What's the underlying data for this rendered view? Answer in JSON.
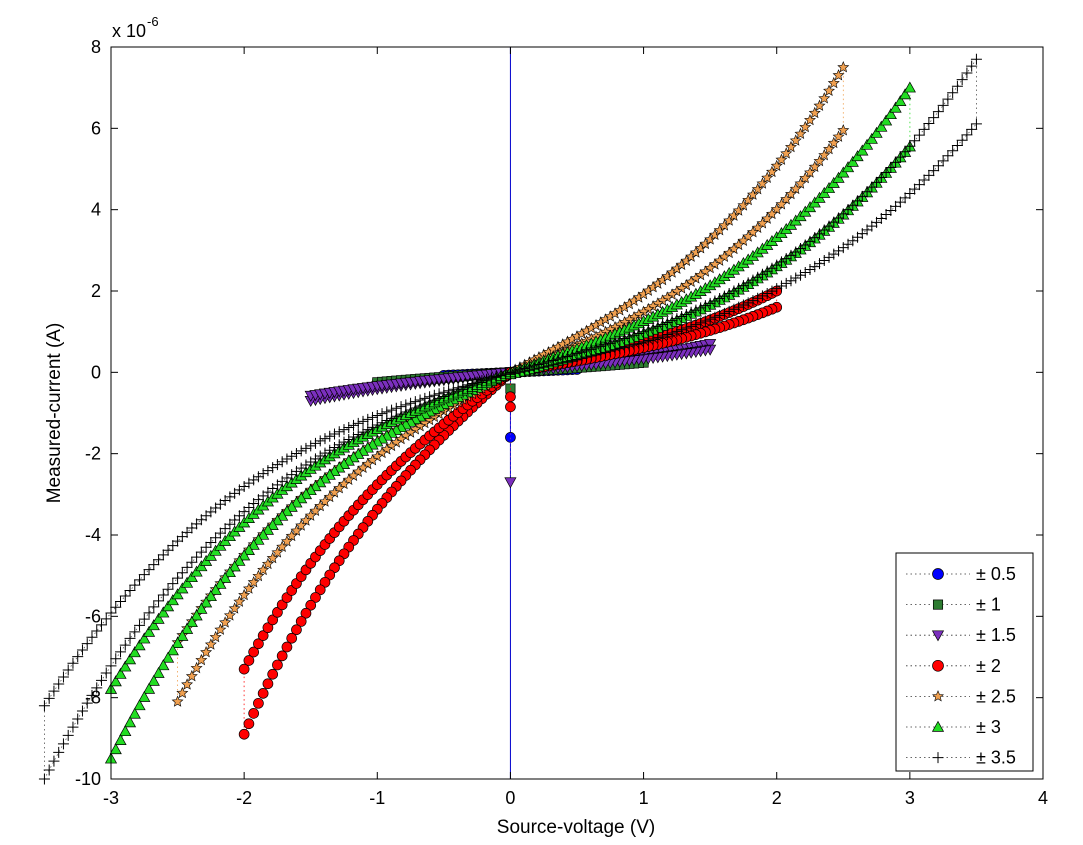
{
  "chart_data": {
    "type": "scatter",
    "xlabel": "Source-voltage (V)",
    "ylabel": "Measured-current (A)",
    "exponent_label": "x 10",
    "exponent_power": "-6",
    "xlim": [
      -3,
      4
    ],
    "ylim": [
      -10,
      8
    ],
    "xticks": [
      "-3",
      "-2",
      "-1",
      "0",
      "1",
      "2",
      "3",
      "4"
    ],
    "yticks": [
      "-10",
      "-8",
      "-6",
      "-4",
      "-2",
      "0",
      "2",
      "4",
      "6",
      "8"
    ],
    "legend_position": "bottom-right",
    "series": [
      {
        "name": "± 0.5",
        "marker": "circle",
        "color": "#0000ff",
        "sweep": 0.5,
        "i_pos": 0.09,
        "i_neg": -0.09,
        "extra_x": [
          0
        ],
        "extra_y": [
          -1.6
        ]
      },
      {
        "name": "± 1",
        "marker": "square",
        "color": "#2e7d32",
        "sweep": 1.0,
        "i_pos": 0.3,
        "i_neg": -0.3,
        "extra_x": [
          0
        ],
        "extra_y": [
          -0.4
        ]
      },
      {
        "name": "± 1.5",
        "marker": "triangle-down",
        "color": "#7b2fbe",
        "sweep": 1.5,
        "i_pos": 0.7,
        "i_neg": -0.7,
        "extra_x": [
          0
        ],
        "extra_y": [
          -2.7
        ]
      },
      {
        "name": "± 2",
        "marker": "circle",
        "color": "#ff0000",
        "sweep": 2.0,
        "i_pos": 2.0,
        "i_neg": -8.9,
        "extra_x": [
          0,
          0
        ],
        "extra_y": [
          -0.6,
          -0.85
        ]
      },
      {
        "name": "± 2.5",
        "marker": "star",
        "color": "#f0a050",
        "sweep": 2.5,
        "i_pos": 7.5,
        "i_neg": -8.1,
        "extra_x": [],
        "extra_y": []
      },
      {
        "name": "± 3",
        "marker": "triangle-up",
        "color": "#22dd22",
        "sweep": 3.0,
        "i_pos": 7.0,
        "i_neg": -9.5,
        "extra_x": [],
        "extra_y": []
      },
      {
        "name": "± 3.5",
        "marker": "plus",
        "color": "#000000",
        "sweep": 3.5,
        "i_pos": 7.7,
        "i_neg": -10.0,
        "extra_x": [],
        "extra_y": []
      }
    ]
  }
}
